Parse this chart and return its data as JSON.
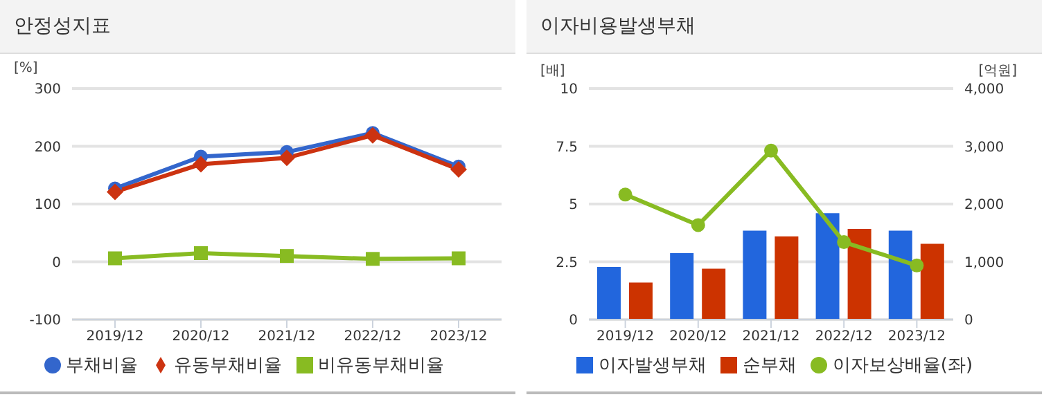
{
  "chart_data": [
    {
      "type": "line",
      "title": "안정성지표",
      "ylabel": "[%]",
      "categories": [
        "2019/12",
        "2020/12",
        "2021/12",
        "2022/12",
        "2023/12"
      ],
      "ylim": [
        -100,
        300
      ],
      "yticks": [
        -100,
        0,
        100,
        200,
        300
      ],
      "grid": "y",
      "legend": "bottom",
      "series": [
        {
          "name": "부채비율",
          "color": "#3366cc",
          "marker": "circle",
          "values": [
            127,
            182,
            190,
            223,
            165
          ]
        },
        {
          "name": "유동부채비율",
          "color": "#cc3311",
          "marker": "diamond",
          "values": [
            121,
            169,
            180,
            219,
            160
          ]
        },
        {
          "name": "비유동부채비율",
          "color": "#88bb22",
          "marker": "square",
          "values": [
            6,
            15,
            10,
            5,
            6
          ]
        }
      ]
    },
    {
      "type": "bar",
      "title": "이자비용발생부채",
      "ylabel": "[배]",
      "y2label": "[억원]",
      "categories": [
        "2019/12",
        "2020/12",
        "2021/12",
        "2022/12",
        "2023/12"
      ],
      "ylim": [
        0,
        10
      ],
      "yticks": [
        0,
        2.5,
        5,
        7.5,
        10
      ],
      "y2lim": [
        0,
        4000
      ],
      "y2ticks": [
        0,
        {
          "value": 1000,
          "label": "1,000"
        },
        {
          "value": 2000,
          "label": "2,000"
        },
        {
          "value": 3000,
          "label": "3,000"
        },
        {
          "value": 4000,
          "label": "4,000"
        }
      ],
      "grid": "y",
      "legend": "bottom",
      "series": [
        {
          "name": "이자발생부채",
          "color": "#2266dd",
          "axis": "y2",
          "values": [
            910,
            1150,
            1540,
            1840,
            1540
          ]
        },
        {
          "name": "순부채",
          "color": "#cc3300",
          "axis": "y2",
          "values": [
            640,
            880,
            1440,
            1570,
            1310
          ]
        },
        {
          "name": "이자보상배율(좌)",
          "type": "line",
          "color": "#88bb22",
          "marker": "circle",
          "values": [
            5.41,
            4.09,
            7.31,
            3.35,
            2.34
          ]
        }
      ]
    }
  ]
}
